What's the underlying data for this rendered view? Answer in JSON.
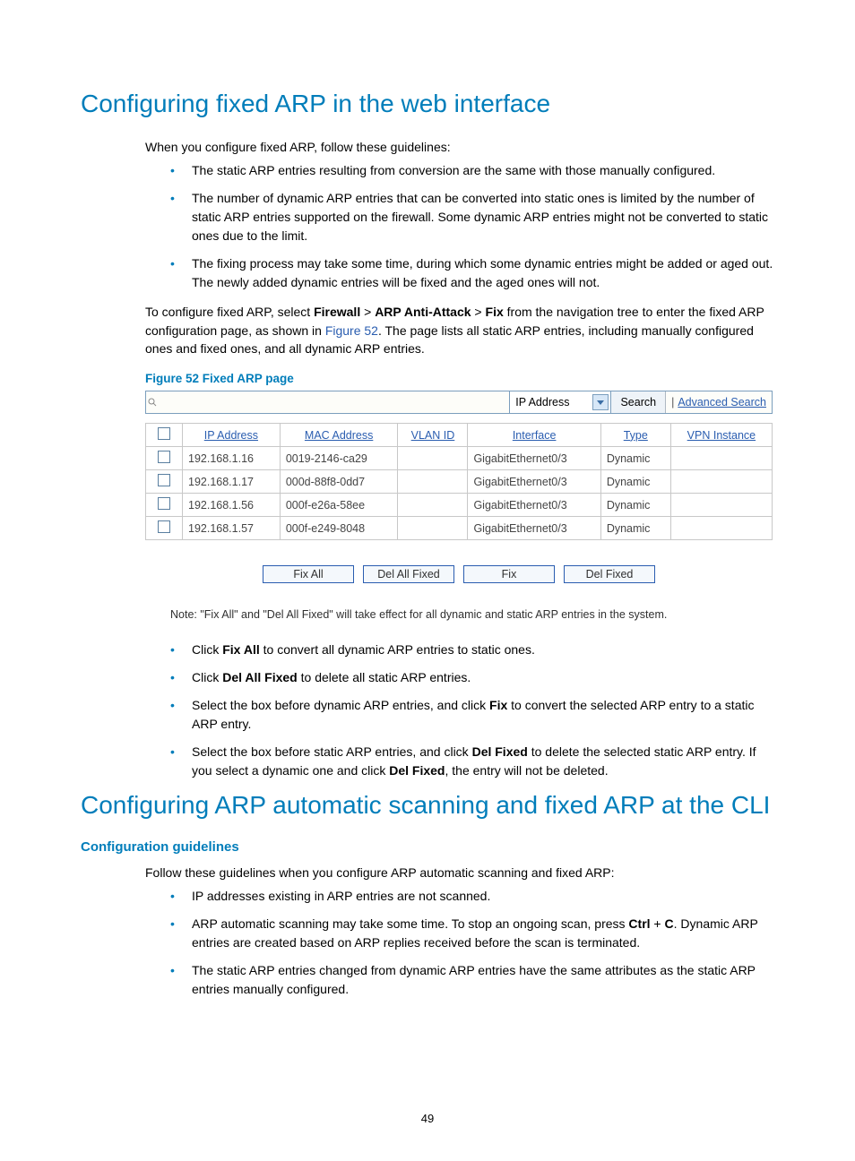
{
  "heading1": "Configuring fixed ARP in the web interface",
  "intro": "When you configure fixed ARP, follow these guidelines:",
  "guidelines1": [
    "The static ARP entries resulting from conversion are the same with those manually configured.",
    "The number of dynamic ARP entries that can be converted into static ones is limited by the number of static ARP entries supported on the firewall. Some dynamic ARP entries might not be converted to static ones due to the limit.",
    "The fixing process may take some time, during which some dynamic entries might be added or aged out. The newly added dynamic entries will be fixed and the aged ones will not."
  ],
  "configure_line": {
    "pre": "To configure fixed ARP, select ",
    "bold1": "Firewall",
    "sep": " > ",
    "bold2": "ARP Anti-Attack",
    "bold3": "Fix",
    "mid": " from the navigation tree to enter the fixed ARP configuration page, as shown in ",
    "link": "Figure 52",
    "post": ". The page lists all static ARP entries, including manually configured ones and fixed ones, and all dynamic ARP entries."
  },
  "figure_caption": "Figure 52 Fixed ARP page",
  "searchbar": {
    "dropdown": "IP Address",
    "button": "Search",
    "advanced": "Advanced Search"
  },
  "table": {
    "headers": [
      "IP Address",
      "MAC Address",
      "VLAN ID",
      "Interface",
      "Type",
      "VPN Instance"
    ],
    "rows": [
      [
        "192.168.1.16",
        "0019-2146-ca29",
        "",
        "GigabitEthernet0/3",
        "Dynamic",
        ""
      ],
      [
        "192.168.1.17",
        "000d-88f8-0dd7",
        "",
        "GigabitEthernet0/3",
        "Dynamic",
        ""
      ],
      [
        "192.168.1.56",
        "000f-e26a-58ee",
        "",
        "GigabitEthernet0/3",
        "Dynamic",
        ""
      ],
      [
        "192.168.1.57",
        "000f-e249-8048",
        "",
        "GigabitEthernet0/3",
        "Dynamic",
        ""
      ]
    ]
  },
  "buttons": [
    "Fix All",
    "Del All Fixed",
    "Fix",
    "Del Fixed"
  ],
  "note": "Note: \"Fix All\" and \"Del All Fixed\" will take effect for all dynamic and static ARP entries in the system.",
  "actions": [
    {
      "pre": "Click ",
      "bold": "Fix All",
      "post": " to convert all dynamic ARP entries to static ones."
    },
    {
      "pre": "Click ",
      "bold": "Del All Fixed",
      "post": " to delete all static ARP entries."
    },
    {
      "pre": "Select the box before dynamic ARP entries, and click ",
      "bold": "Fix",
      "post": " to convert the selected ARP entry to a static ARP entry."
    },
    {
      "pre": "Select the box before static ARP entries, and click ",
      "bold": "Del Fixed",
      "post": " to delete the selected static ARP entry. If you select a dynamic one and click ",
      "bold2": "Del Fixed",
      "post2": ", the entry will not be deleted."
    }
  ],
  "heading2": "Configuring ARP automatic scanning and fixed ARP at the CLI",
  "sub_heading": "Configuration guidelines",
  "follow_line": "Follow these guidelines when you configure ARP automatic scanning and fixed ARP:",
  "guidelines2": [
    {
      "text": "IP addresses existing in ARP entries are not scanned."
    },
    {
      "pre": "ARP automatic scanning may take some time. To stop an ongoing scan, press ",
      "bold1": "Ctrl",
      "mid": " + ",
      "bold2": "C",
      "post": ". Dynamic ARP entries are created based on ARP replies received before the scan is terminated."
    },
    {
      "text": "The static ARP entries changed from dynamic ARP entries have the same attributes as the static ARP entries manually configured."
    }
  ],
  "page_number": "49",
  "colors": {
    "accent": "#007dba",
    "link": "#2a5db0",
    "border": "#c8c8c8"
  }
}
